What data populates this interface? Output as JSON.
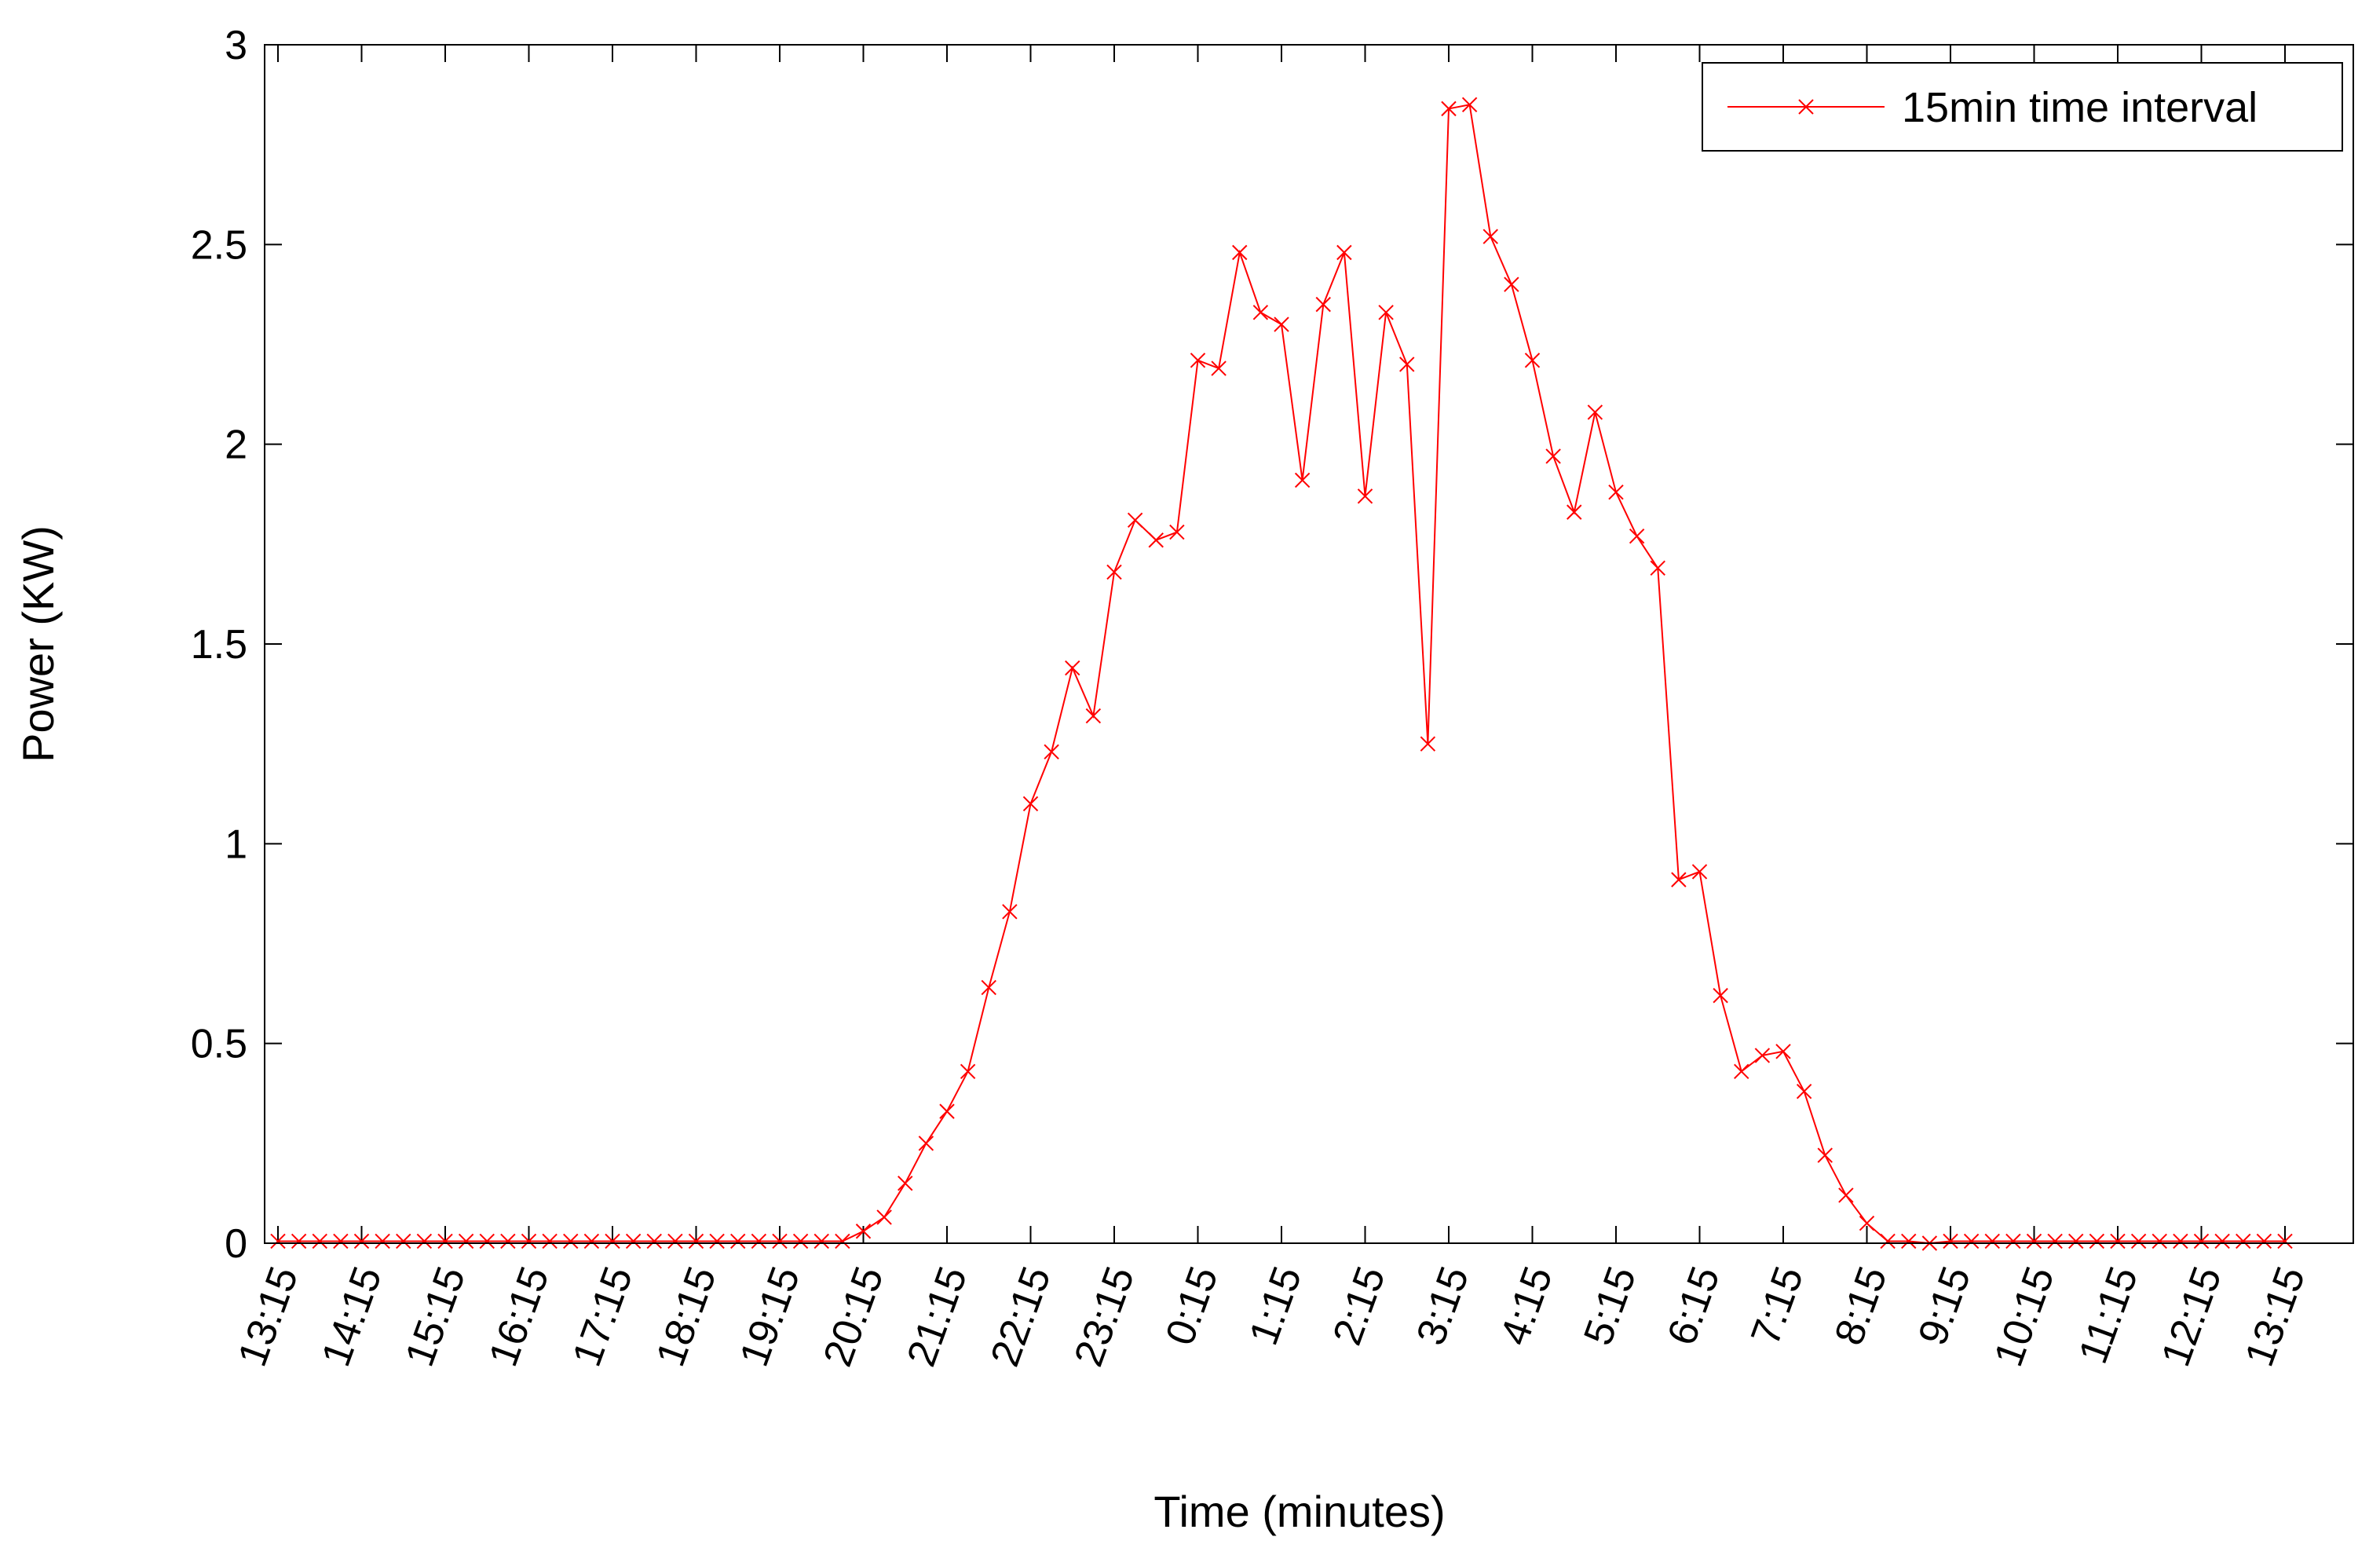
{
  "chart_data": {
    "type": "line",
    "xlabel": "Time (minutes)",
    "ylabel": "Power (KW)",
    "ylim": [
      0,
      3
    ],
    "yticks": [
      "0",
      "0.5",
      "1",
      "1.5",
      "2",
      "2.5",
      "3"
    ],
    "xticks": [
      "13:15",
      "14:15",
      "15:15",
      "16:15",
      "17:15",
      "18:15",
      "19:15",
      "20:15",
      "21:15",
      "22:15",
      "23:15",
      "0:15",
      "1:15",
      "2:15",
      "3:15",
      "4:15",
      "5:15",
      "6:15",
      "7:15",
      "8:15",
      "9:15",
      "10:15",
      "11:15",
      "12:15",
      "13:15"
    ],
    "grid": false,
    "legend_position": "top-right",
    "series": [
      {
        "name": "15min time interval",
        "color": "#ff0000",
        "marker": "x",
        "values": [
          0.005,
          0.005,
          0.005,
          0.005,
          0.005,
          0.005,
          0.005,
          0.005,
          0.005,
          0.005,
          0.005,
          0.005,
          0.005,
          0.005,
          0.005,
          0.005,
          0.005,
          0.005,
          0.005,
          0.005,
          0.005,
          0.005,
          0.005,
          0.005,
          0.005,
          0.005,
          0.005,
          0.005,
          0.03,
          0.065,
          0.15,
          0.25,
          0.33,
          0.43,
          0.64,
          0.83,
          1.1,
          1.23,
          1.44,
          1.32,
          1.68,
          1.81,
          1.76,
          1.78,
          2.21,
          2.19,
          2.48,
          2.33,
          2.3,
          1.91,
          2.35,
          2.48,
          1.87,
          2.33,
          2.2,
          1.25,
          2.84,
          2.85,
          2.52,
          2.4,
          2.21,
          1.97,
          1.83,
          2.08,
          1.88,
          1.77,
          1.69,
          0.91,
          0.93,
          0.62,
          0.43,
          0.47,
          0.48,
          0.38,
          0.22,
          0.12,
          0.05,
          0.005,
          0.005,
          0.0,
          0.005,
          0.005,
          0.005,
          0.005,
          0.005,
          0.005,
          0.005,
          0.005,
          0.005,
          0.005,
          0.005,
          0.005,
          0.005,
          0.005,
          0.005,
          0.005,
          0.005
        ]
      }
    ]
  }
}
